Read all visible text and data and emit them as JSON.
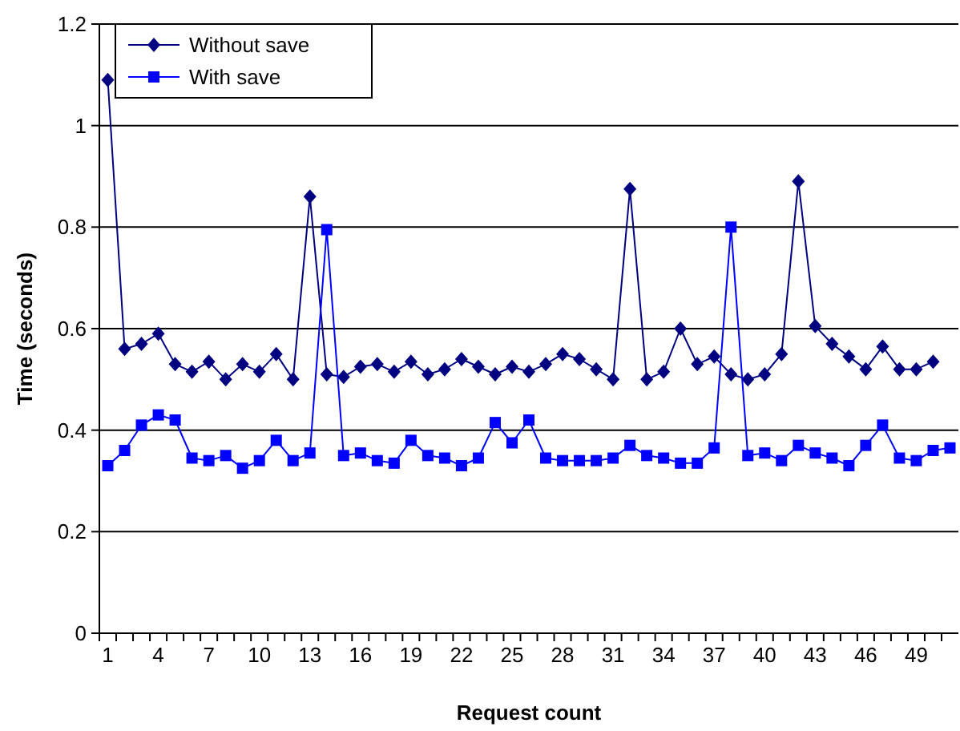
{
  "chart_data": {
    "type": "line",
    "xlabel": "Request count",
    "ylabel": "Time (seconds)",
    "categories": [
      "1",
      null,
      null,
      "4",
      null,
      null,
      "7",
      null,
      null,
      "10",
      null,
      null,
      "13",
      null,
      null,
      "16",
      null,
      null,
      "19",
      null,
      null,
      "22",
      null,
      null,
      "25",
      null,
      null,
      "28",
      null,
      null,
      "31",
      null,
      null,
      "34",
      null,
      null,
      "37",
      null,
      null,
      "40",
      null,
      null,
      "43",
      null,
      null,
      "46",
      null,
      null,
      "49",
      null,
      null
    ],
    "series": [
      {
        "name": "Without save",
        "color": "#000080",
        "marker": "diamond",
        "values": [
          1.09,
          0.56,
          0.57,
          0.59,
          0.53,
          0.515,
          0.535,
          0.5,
          0.53,
          0.515,
          0.55,
          0.5,
          0.86,
          0.51,
          0.505,
          0.525,
          0.53,
          0.515,
          0.535,
          0.51,
          0.52,
          0.54,
          0.525,
          0.51,
          0.525,
          0.515,
          0.53,
          0.55,
          0.54,
          0.52,
          0.5,
          0.875,
          0.5,
          0.515,
          0.6,
          0.53,
          0.545,
          0.51,
          0.5,
          0.51,
          0.55,
          0.89,
          0.605,
          0.57,
          0.545,
          0.52,
          0.565,
          0.52,
          0.52,
          0.535,
          null
        ]
      },
      {
        "name": "With save",
        "color": "#0000ff",
        "marker": "square",
        "values": [
          0.33,
          0.36,
          0.41,
          0.43,
          0.42,
          0.345,
          0.34,
          0.35,
          0.325,
          0.34,
          0.38,
          0.34,
          0.355,
          0.795,
          0.35,
          0.355,
          0.34,
          0.335,
          0.38,
          0.35,
          0.345,
          0.33,
          0.345,
          0.415,
          0.375,
          0.42,
          0.345,
          0.34,
          0.34,
          0.34,
          0.345,
          0.37,
          0.35,
          0.345,
          0.335,
          0.335,
          0.365,
          0.8,
          0.35,
          0.355,
          0.34,
          0.37,
          0.355,
          0.345,
          0.33,
          0.37,
          0.41,
          0.345,
          0.34,
          0.36,
          0.365
        ]
      }
    ],
    "ylim": [
      0,
      1.2
    ],
    "yticks": [
      0,
      0.2,
      0.4,
      0.6,
      0.8,
      1,
      1.2
    ],
    "grid": "y",
    "legend": "top left",
    "line_style": "solid"
  }
}
